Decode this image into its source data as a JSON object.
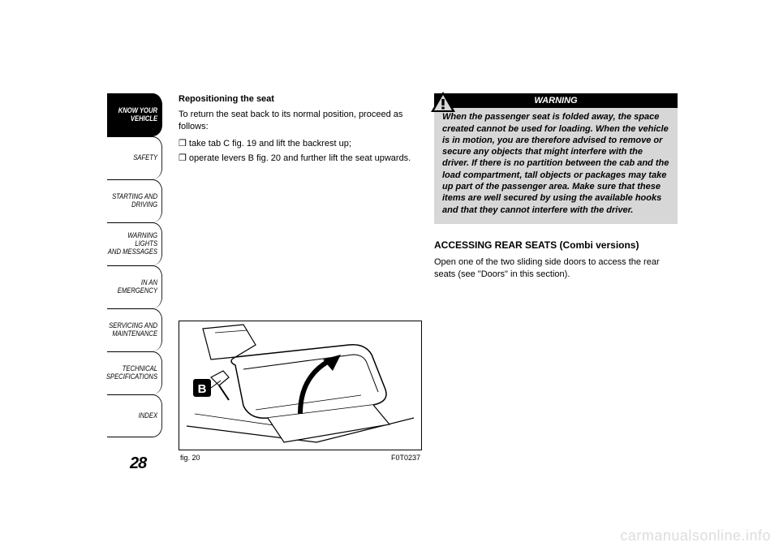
{
  "nav": {
    "items": [
      {
        "label": "KNOW YOUR\nVEHICLE",
        "active": true
      },
      {
        "label": "SAFETY",
        "active": false
      },
      {
        "label": "STARTING AND\nDRIVING",
        "active": false
      },
      {
        "label": "WARNING LIGHTS\nAND MESSAGES",
        "active": false
      },
      {
        "label": "IN AN EMERGENCY",
        "active": false
      },
      {
        "label": "SERVICING AND\nMAINTENANCE",
        "active": false
      },
      {
        "label": "TECHNICAL\nSPECIFICATIONS",
        "active": false
      },
      {
        "label": "INDEX",
        "active": false
      }
    ]
  },
  "page_number": "28",
  "left_col": {
    "heading": "Repositioning the seat",
    "intro": "To return the seat back to its normal position, proceed as follows:",
    "bullets": [
      "take tab C fig. 19 and lift the backrest up;",
      "operate levers B fig. 20 and further lift the seat upwards."
    ]
  },
  "figure": {
    "label_letter": "B",
    "caption_left": "fig. 20",
    "caption_right": "F0T0237",
    "stroke": "#000000",
    "fill_bg": "#ffffff",
    "label_box_bg": "#000000",
    "label_box_fg": "#ffffff"
  },
  "warning": {
    "title": "WARNING",
    "body": "When the passenger seat is folded away, the space created cannot be used for loading. When the vehicle is in motion, you are therefore advised to remove or secure any objects that might interfere with the driver. If there is no partition between the cab and the load compartment, tall objects or packages may take up part of the passenger area. Make sure that these items are well secured by using the available hooks and that they cannot interfere with the driver.",
    "bg": "#d7d7d7",
    "title_bg": "#000000",
    "title_fg": "#ffffff"
  },
  "right_col": {
    "section_title": "ACCESSING REAR SEATS (Combi versions)",
    "section_body": "Open one of the two sliding side doors to access the rear seats (see \"Doors\" in this section)."
  },
  "watermark": "carmanualsonline.info"
}
